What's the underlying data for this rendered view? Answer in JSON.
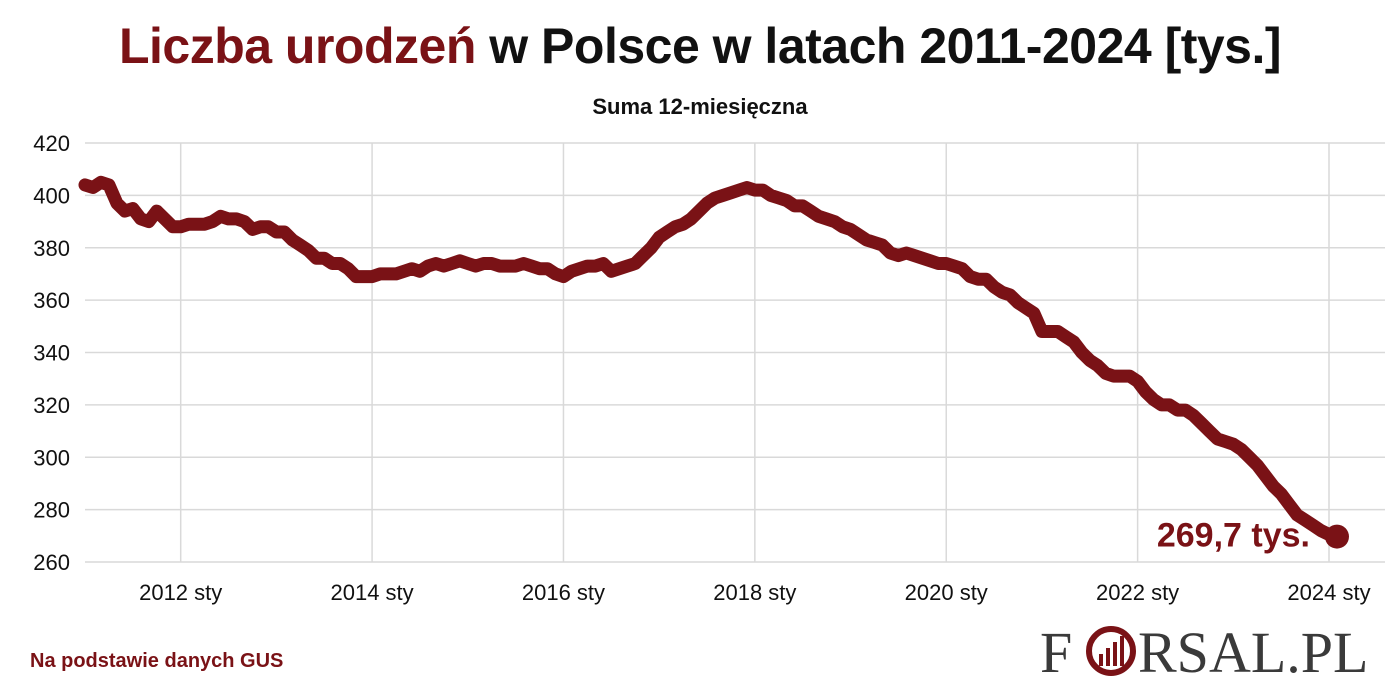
{
  "header": {
    "title_accent": "Liczba urodzeń",
    "title_rest": " w Polsce w latach 2011-2024 [tys.]",
    "subtitle": "Suma 12-miesięczna"
  },
  "footer": {
    "source": "Na podstawie danych GUS",
    "logo_text": "FORSAL.PL"
  },
  "colors": {
    "accent": "#7a1216",
    "grid": "#d9d9d9",
    "text": "#111111"
  },
  "chart_data": {
    "type": "line",
    "title": "Liczba urodzeń w Polsce w latach 2011-2024 [tys.]",
    "subtitle": "Suma 12-miesięczna",
    "xlabel": "",
    "ylabel": "",
    "ylim": [
      260,
      420
    ],
    "xlim": [
      "2011-01",
      "2024-02"
    ],
    "yticks": [
      420,
      400,
      380,
      360,
      340,
      320,
      300,
      280,
      260
    ],
    "xticks": [
      {
        "date": "2012-01",
        "label": "2012 sty"
      },
      {
        "date": "2014-01",
        "label": "2014 sty"
      },
      {
        "date": "2016-01",
        "label": "2016 sty"
      },
      {
        "date": "2018-01",
        "label": "2018 sty"
      },
      {
        "date": "2020-01",
        "label": "2020 sty"
      },
      {
        "date": "2022-01",
        "label": "2022 sty"
      },
      {
        "date": "2024-01",
        "label": "2024 sty"
      }
    ],
    "grid": true,
    "legend": "none",
    "series": [
      {
        "points": [
          [
            "2011-01",
            404
          ],
          [
            "2011-02",
            403
          ],
          [
            "2011-03",
            405
          ],
          [
            "2011-04",
            404
          ],
          [
            "2011-05",
            397
          ],
          [
            "2011-06",
            394
          ],
          [
            "2011-07",
            395
          ],
          [
            "2011-08",
            391
          ],
          [
            "2011-09",
            390
          ],
          [
            "2011-10",
            394
          ],
          [
            "2011-11",
            391
          ],
          [
            "2011-12",
            388
          ],
          [
            "2012-01",
            388
          ],
          [
            "2012-02",
            389
          ],
          [
            "2012-03",
            389
          ],
          [
            "2012-04",
            389
          ],
          [
            "2012-05",
            390
          ],
          [
            "2012-06",
            392
          ],
          [
            "2012-07",
            391
          ],
          [
            "2012-08",
            391
          ],
          [
            "2012-09",
            390
          ],
          [
            "2012-10",
            387
          ],
          [
            "2012-11",
            388
          ],
          [
            "2012-12",
            388
          ],
          [
            "2013-01",
            386
          ],
          [
            "2013-02",
            386
          ],
          [
            "2013-03",
            383
          ],
          [
            "2013-04",
            381
          ],
          [
            "2013-05",
            379
          ],
          [
            "2013-06",
            376
          ],
          [
            "2013-07",
            376
          ],
          [
            "2013-08",
            374
          ],
          [
            "2013-09",
            374
          ],
          [
            "2013-10",
            372
          ],
          [
            "2013-11",
            369
          ],
          [
            "2013-12",
            369
          ],
          [
            "2014-01",
            369
          ],
          [
            "2014-02",
            370
          ],
          [
            "2014-03",
            370
          ],
          [
            "2014-04",
            370
          ],
          [
            "2014-05",
            371
          ],
          [
            "2014-06",
            372
          ],
          [
            "2014-07",
            371
          ],
          [
            "2014-08",
            373
          ],
          [
            "2014-09",
            374
          ],
          [
            "2014-10",
            373
          ],
          [
            "2014-11",
            374
          ],
          [
            "2014-12",
            375
          ],
          [
            "2015-01",
            374
          ],
          [
            "2015-02",
            373
          ],
          [
            "2015-03",
            374
          ],
          [
            "2015-04",
            374
          ],
          [
            "2015-05",
            373
          ],
          [
            "2015-06",
            373
          ],
          [
            "2015-07",
            373
          ],
          [
            "2015-08",
            374
          ],
          [
            "2015-09",
            373
          ],
          [
            "2015-10",
            372
          ],
          [
            "2015-11",
            372
          ],
          [
            "2015-12",
            370
          ],
          [
            "2016-01",
            369
          ],
          [
            "2016-02",
            371
          ],
          [
            "2016-03",
            372
          ],
          [
            "2016-04",
            373
          ],
          [
            "2016-05",
            373
          ],
          [
            "2016-06",
            374
          ],
          [
            "2016-07",
            371
          ],
          [
            "2016-08",
            372
          ],
          [
            "2016-09",
            373
          ],
          [
            "2016-10",
            374
          ],
          [
            "2016-11",
            377
          ],
          [
            "2016-12",
            380
          ],
          [
            "2017-01",
            384
          ],
          [
            "2017-02",
            386
          ],
          [
            "2017-03",
            388
          ],
          [
            "2017-04",
            389
          ],
          [
            "2017-05",
            391
          ],
          [
            "2017-06",
            394
          ],
          [
            "2017-07",
            397
          ],
          [
            "2017-08",
            399
          ],
          [
            "2017-09",
            400
          ],
          [
            "2017-10",
            401
          ],
          [
            "2017-11",
            402
          ],
          [
            "2017-12",
            403
          ],
          [
            "2018-01",
            402
          ],
          [
            "2018-02",
            402
          ],
          [
            "2018-03",
            400
          ],
          [
            "2018-04",
            399
          ],
          [
            "2018-05",
            398
          ],
          [
            "2018-06",
            396
          ],
          [
            "2018-07",
            396
          ],
          [
            "2018-08",
            394
          ],
          [
            "2018-09",
            392
          ],
          [
            "2018-10",
            391
          ],
          [
            "2018-11",
            390
          ],
          [
            "2018-12",
            388
          ],
          [
            "2019-01",
            387
          ],
          [
            "2019-02",
            385
          ],
          [
            "2019-03",
            383
          ],
          [
            "2019-04",
            382
          ],
          [
            "2019-05",
            381
          ],
          [
            "2019-06",
            378
          ],
          [
            "2019-07",
            377
          ],
          [
            "2019-08",
            378
          ],
          [
            "2019-09",
            377
          ],
          [
            "2019-10",
            376
          ],
          [
            "2019-11",
            375
          ],
          [
            "2019-12",
            374
          ],
          [
            "2020-01",
            374
          ],
          [
            "2020-02",
            373
          ],
          [
            "2020-03",
            372
          ],
          [
            "2020-04",
            369
          ],
          [
            "2020-05",
            368
          ],
          [
            "2020-06",
            368
          ],
          [
            "2020-07",
            365
          ],
          [
            "2020-08",
            363
          ],
          [
            "2020-09",
            362
          ],
          [
            "2020-10",
            359
          ],
          [
            "2020-11",
            357
          ],
          [
            "2020-12",
            355
          ],
          [
            "2021-01",
            348
          ],
          [
            "2021-02",
            348
          ],
          [
            "2021-03",
            348
          ],
          [
            "2021-04",
            346
          ],
          [
            "2021-05",
            344
          ],
          [
            "2021-06",
            340
          ],
          [
            "2021-07",
            337
          ],
          [
            "2021-08",
            335
          ],
          [
            "2021-09",
            332
          ],
          [
            "2021-10",
            331
          ],
          [
            "2021-11",
            331
          ],
          [
            "2021-12",
            331
          ],
          [
            "2022-01",
            329
          ],
          [
            "2022-02",
            325
          ],
          [
            "2022-03",
            322
          ],
          [
            "2022-04",
            320
          ],
          [
            "2022-05",
            320
          ],
          [
            "2022-06",
            318
          ],
          [
            "2022-07",
            318
          ],
          [
            "2022-08",
            316
          ],
          [
            "2022-09",
            313
          ],
          [
            "2022-10",
            310
          ],
          [
            "2022-11",
            307
          ],
          [
            "2022-12",
            306
          ],
          [
            "2023-01",
            305
          ],
          [
            "2023-02",
            303
          ],
          [
            "2023-03",
            300
          ],
          [
            "2023-04",
            297
          ],
          [
            "2023-05",
            293
          ],
          [
            "2023-06",
            289
          ],
          [
            "2023-07",
            286
          ],
          [
            "2023-08",
            282
          ],
          [
            "2023-09",
            278
          ],
          [
            "2023-10",
            276
          ],
          [
            "2023-11",
            274
          ],
          [
            "2023-12",
            272
          ],
          [
            "2024-01",
            270.5
          ],
          [
            "2024-02",
            269.7
          ]
        ]
      }
    ],
    "annotations": [
      {
        "date": "2024-02",
        "value": 269.7,
        "text": "269,7 tys."
      }
    ]
  }
}
